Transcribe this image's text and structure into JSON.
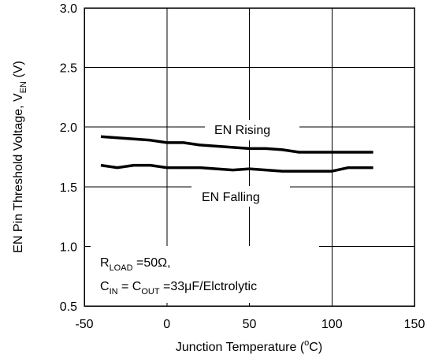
{
  "chart_data": {
    "type": "line",
    "xlabel": {
      "pre": "Junction Temperature (",
      "sup": "o",
      "post": "C)"
    },
    "ylabel": {
      "pre": "EN Pin Threshold Voltage, V",
      "sub": "EN",
      "post": " (V)"
    },
    "xlim": [
      -50,
      150
    ],
    "ylim": [
      0.5,
      3.0
    ],
    "x_ticks": [
      -50,
      0,
      50,
      100,
      150
    ],
    "x_tick_labels": [
      "-50",
      "0",
      "50",
      "100",
      "150"
    ],
    "y_ticks": [
      0.5,
      1.0,
      1.5,
      2.0,
      2.5,
      3.0
    ],
    "y_tick_labels": [
      "0.5",
      "1.0",
      "1.5",
      "2.0",
      "2.5",
      "3.0"
    ],
    "grid": true,
    "series": [
      {
        "name": "EN Rising",
        "x": [
          -40,
          -30,
          -20,
          -10,
          0,
          10,
          20,
          30,
          40,
          50,
          60,
          70,
          80,
          90,
          100,
          110,
          125
        ],
        "y": [
          1.92,
          1.91,
          1.9,
          1.89,
          1.87,
          1.87,
          1.85,
          1.84,
          1.83,
          1.82,
          1.82,
          1.81,
          1.79,
          1.79,
          1.79,
          1.79,
          1.79
        ]
      },
      {
        "name": "EN Falling",
        "x": [
          -40,
          -30,
          -20,
          -10,
          0,
          10,
          20,
          30,
          40,
          50,
          60,
          70,
          80,
          90,
          100,
          110,
          125
        ],
        "y": [
          1.68,
          1.66,
          1.68,
          1.68,
          1.66,
          1.66,
          1.66,
          1.65,
          1.64,
          1.65,
          1.64,
          1.63,
          1.63,
          1.63,
          1.63,
          1.66,
          1.66
        ]
      }
    ],
    "annotation": {
      "line1": {
        "r": "R",
        "r_sub": "LOAD",
        "r_val": " =50Ω,"
      },
      "line2": {
        "c1": "C",
        "c1_sub": "IN",
        "eq": " = C",
        "c2_sub": "OUT",
        "val": " =33μF/Elctrolytic"
      }
    }
  }
}
